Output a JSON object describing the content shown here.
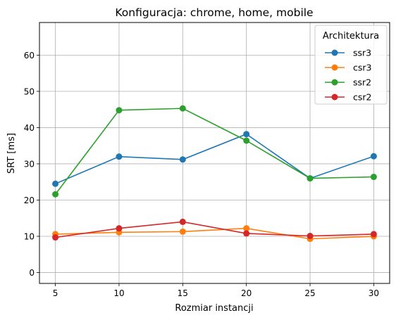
{
  "chart_data": {
    "type": "line",
    "title": "Konfiguracja: chrome, home, mobile",
    "xlabel": "Rozmiar instancji",
    "ylabel": "SRT [ms]",
    "x": [
      5,
      10,
      15,
      20,
      25,
      30
    ],
    "xticks": [
      "5",
      "10",
      "15",
      "20",
      "25",
      "30"
    ],
    "yticks": [
      "0",
      "10",
      "20",
      "30",
      "40",
      "50",
      "60"
    ],
    "ylim": [
      -3,
      69
    ],
    "grid": true,
    "legend_position": "top-right",
    "legend_title": "Architektura",
    "series": [
      {
        "name": "ssr3",
        "color": "#1f77b4",
        "values": [
          24.5,
          32.0,
          31.2,
          38.2,
          26.0,
          32.1
        ]
      },
      {
        "name": "csr3",
        "color": "#ff7f0e",
        "values": [
          10.6,
          11.1,
          11.3,
          12.2,
          9.3,
          10.0
        ]
      },
      {
        "name": "ssr2",
        "color": "#2ca02c",
        "values": [
          21.6,
          44.8,
          45.3,
          36.4,
          26.0,
          26.4
        ]
      },
      {
        "name": "csr2",
        "color": "#d62728",
        "values": [
          9.7,
          12.2,
          14.0,
          10.8,
          10.1,
          10.6
        ]
      }
    ]
  }
}
